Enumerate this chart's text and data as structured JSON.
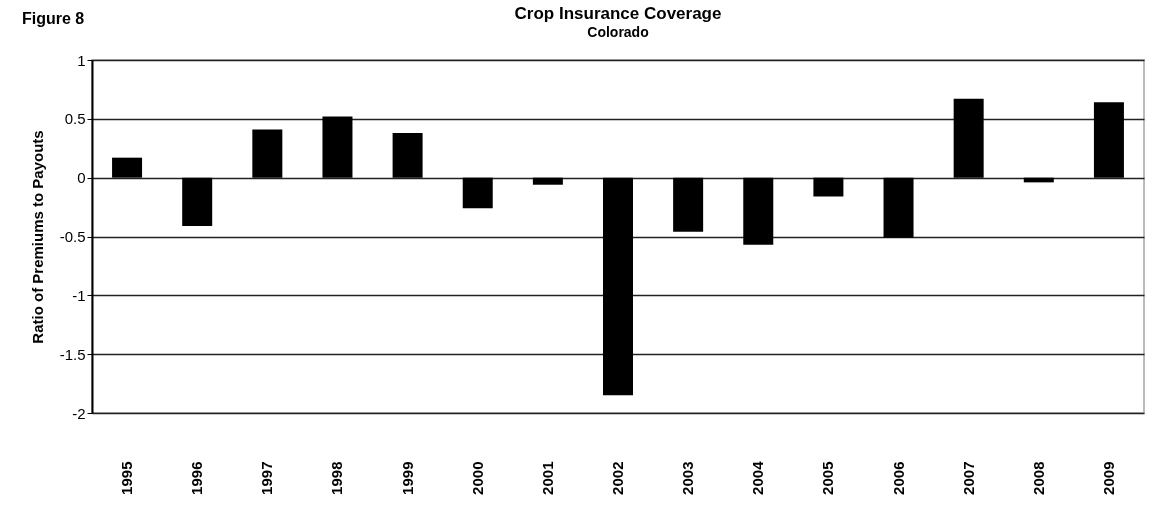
{
  "chart_data": {
    "type": "bar",
    "title": "Crop Insurance Coverage",
    "subtitle": "Colorado",
    "ylabel": "Ratio of Premiums to Payouts",
    "annotations": [
      "Figure 8"
    ],
    "categories": [
      "1995",
      "1996",
      "1997",
      "1998",
      "1999",
      "2000",
      "2001",
      "2002",
      "2003",
      "2004",
      "2005",
      "2006",
      "2007",
      "2008",
      "2009"
    ],
    "values": [
      0.17,
      -0.41,
      0.41,
      0.52,
      0.38,
      -0.26,
      -0.06,
      -1.85,
      -0.46,
      -0.57,
      -0.16,
      -0.51,
      0.67,
      -0.04,
      0.64
    ],
    "color": "#000000",
    "ylim": [
      -2,
      1
    ],
    "yticks": [
      -2,
      -1.5,
      -1,
      -0.5,
      0,
      0.5,
      1
    ],
    "grid": "y"
  }
}
